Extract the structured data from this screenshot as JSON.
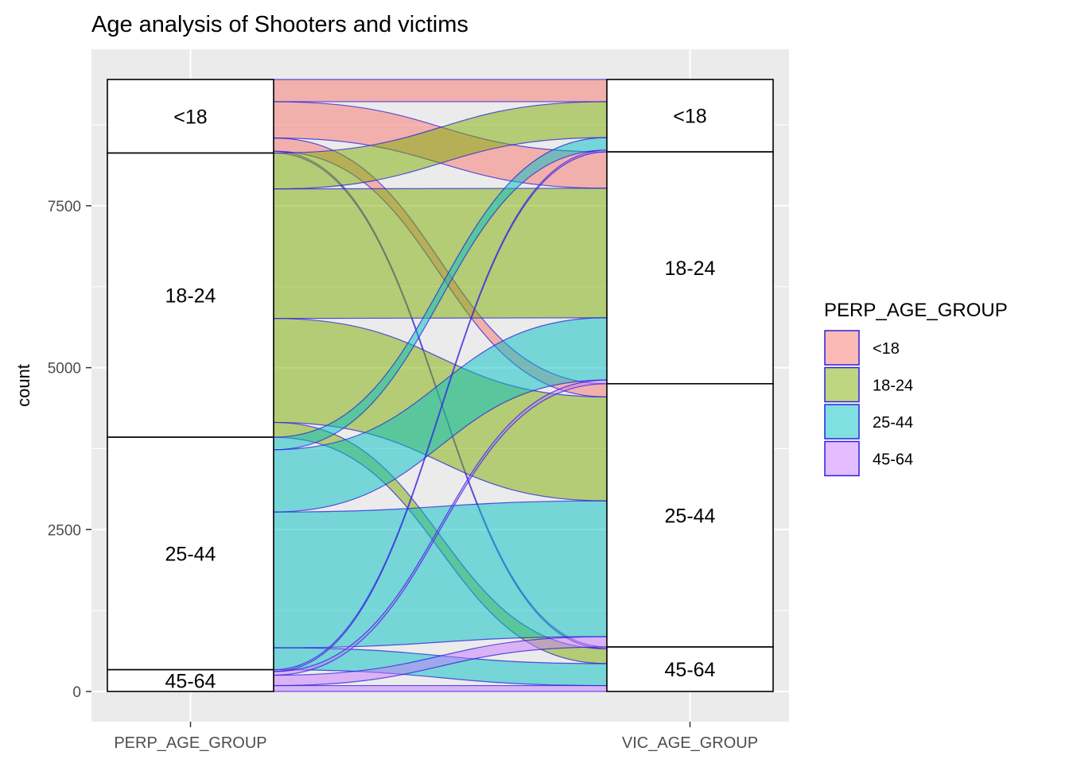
{
  "chart_data": {
    "type": "alluvial",
    "title": "Age analysis of Shooters and victims",
    "xlabel": "",
    "ylabel": "count",
    "ylim": [
      0,
      9450
    ],
    "y_ticks": [
      0,
      2500,
      5000,
      7500
    ],
    "axes": [
      "PERP_AGE_GROUP",
      "VIC_AGE_GROUP"
    ],
    "legend_title": "PERP_AGE_GROUP",
    "legend_position": "right",
    "grid": true,
    "colors": {
      "<18": "#F8766D",
      "18-24": "#7CAE00",
      "25-44": "#00BFC4",
      "45-64": "#C77CFF"
    },
    "strata": {
      "PERP_AGE_GROUP": [
        {
          "label": "<18",
          "value": 1136
        },
        {
          "label": "18-24",
          "value": 4388
        },
        {
          "label": "25-44",
          "value": 3590
        },
        {
          "label": "45-64",
          "value": 336
        }
      ],
      "VIC_AGE_GROUP": [
        {
          "label": "<18",
          "value": 1118
        },
        {
          "label": "18-24",
          "value": 3580
        },
        {
          "label": "25-44",
          "value": 4065
        },
        {
          "label": "45-64",
          "value": 687
        }
      ]
    },
    "flows": [
      {
        "perp": "<18",
        "vic": "<18",
        "value": 343
      },
      {
        "perp": "<18",
        "vic": "18-24",
        "value": 561
      },
      {
        "perp": "<18",
        "vic": "25-44",
        "value": 204
      },
      {
        "perp": "<18",
        "vic": "45-64",
        "value": 28
      },
      {
        "perp": "18-24",
        "vic": "<18",
        "value": 554
      },
      {
        "perp": "18-24",
        "vic": "18-24",
        "value": 2000
      },
      {
        "perp": "18-24",
        "vic": "25-44",
        "value": 1605
      },
      {
        "perp": "18-24",
        "vic": "45-64",
        "value": 229
      },
      {
        "perp": "25-44",
        "vic": "<18",
        "value": 193
      },
      {
        "perp": "25-44",
        "vic": "18-24",
        "value": 962
      },
      {
        "perp": "25-44",
        "vic": "25-44",
        "value": 2096
      },
      {
        "perp": "25-44",
        "vic": "45-64",
        "value": 339
      },
      {
        "perp": "45-64",
        "vic": "<18",
        "value": 28
      },
      {
        "perp": "45-64",
        "vic": "18-24",
        "value": 57
      },
      {
        "perp": "45-64",
        "vic": "25-44",
        "value": 160
      },
      {
        "perp": "45-64",
        "vic": "45-64",
        "value": 91
      }
    ]
  }
}
